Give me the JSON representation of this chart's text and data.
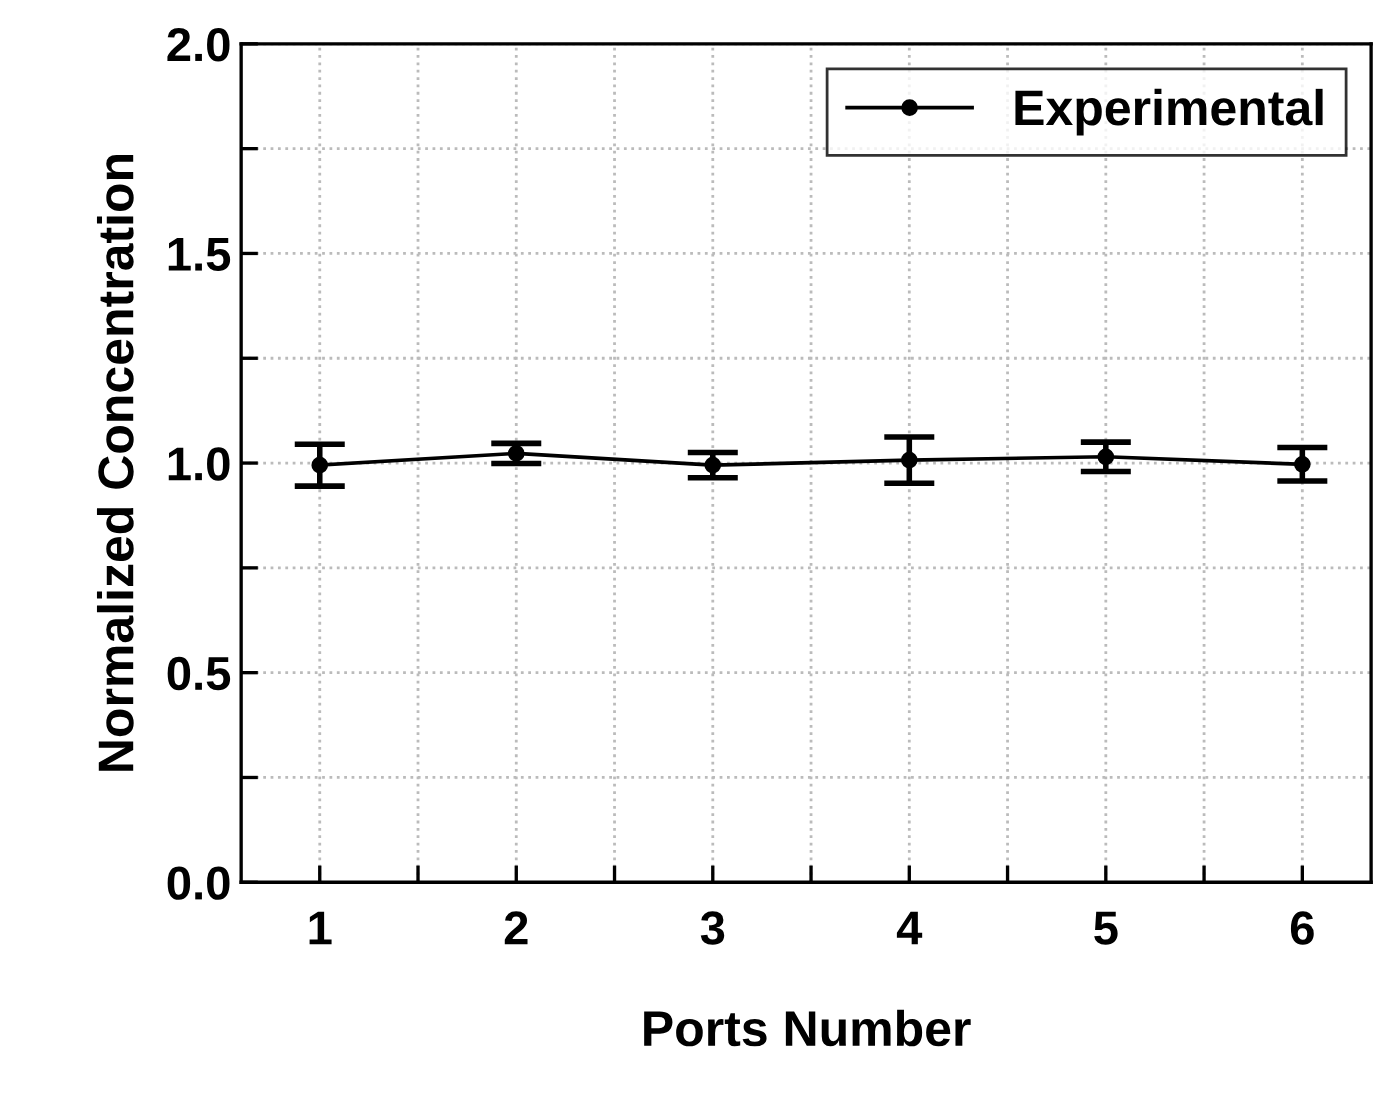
{
  "chart_data": {
    "type": "line",
    "xlabel": "Ports Number",
    "ylabel": "Normalized Concentration",
    "x": [
      1,
      2,
      3,
      4,
      5,
      6
    ],
    "series": [
      {
        "name": "Experimental",
        "color": "#000000",
        "values": [
          0.995,
          1.023,
          0.995,
          1.007,
          1.015,
          0.997
        ],
        "errors": [
          0.05,
          0.024,
          0.03,
          0.055,
          0.035,
          0.04
        ]
      }
    ],
    "xlim": [
      0.6,
      6.35
    ],
    "xticks": [
      1,
      {
        "value": 1.5,
        "label": null
      },
      2,
      {
        "value": 2.5,
        "label": null
      },
      3,
      {
        "value": 3.5,
        "label": null
      },
      4,
      {
        "value": 4.5,
        "label": null
      },
      5,
      {
        "value": 5.5,
        "label": null
      },
      6
    ],
    "ylim": [
      0,
      2
    ],
    "yticks": [
      "0.0",
      {
        "value": 0.25,
        "label": null
      },
      {
        "value": 0.5,
        "label": "0.5"
      },
      {
        "value": 0.75,
        "label": null
      },
      {
        "value": 1.0,
        "label": "1.0"
      },
      {
        "value": 1.25,
        "label": null
      },
      {
        "value": 1.5,
        "label": "1.5"
      },
      {
        "value": 1.75,
        "label": null
      },
      {
        "value": 2.0,
        "label": "2.0"
      }
    ],
    "grid": true,
    "legend": "top right",
    "marker": "circle",
    "line_style": "solid"
  }
}
